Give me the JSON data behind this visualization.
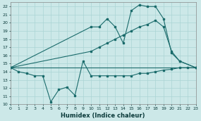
{
  "xlabel": "Humidex (Indice chaleur)",
  "xlim": [
    0,
    23
  ],
  "ylim": [
    10,
    22.5
  ],
  "xticks": [
    0,
    1,
    2,
    3,
    4,
    5,
    6,
    7,
    8,
    9,
    10,
    11,
    12,
    13,
    14,
    15,
    16,
    17,
    18,
    19,
    20,
    21,
    22,
    23
  ],
  "yticks": [
    10,
    11,
    12,
    13,
    14,
    15,
    16,
    17,
    18,
    19,
    20,
    21,
    22
  ],
  "bg_color": "#cce8e8",
  "line_color": "#1a6b6b",
  "grid_color": "#aad4d4",
  "line1_x": [
    0,
    1,
    2,
    3,
    4,
    5,
    6,
    7,
    8,
    9,
    10,
    11,
    12,
    13,
    14,
    15,
    16,
    17,
    18,
    19,
    20,
    21,
    22,
    23
  ],
  "line1_y": [
    14.5,
    14.0,
    13.8,
    13.5,
    13.5,
    10.3,
    11.8,
    12.1,
    11.1,
    15.3,
    13.5,
    13.5,
    13.5,
    13.5,
    13.5,
    13.5,
    13.8,
    13.8,
    14.0,
    14.2,
    14.3,
    14.5,
    14.5,
    14.5
  ],
  "line2_x": [
    0,
    10,
    11,
    12,
    13,
    14,
    15,
    16,
    17,
    18,
    19,
    20,
    21,
    23
  ],
  "line2_y": [
    14.5,
    19.5,
    19.5,
    20.5,
    19.5,
    17.5,
    21.5,
    22.2,
    22.0,
    22.0,
    20.5,
    16.3,
    15.3,
    14.5
  ],
  "line3_x": [
    0,
    10,
    11,
    12,
    13,
    14,
    15,
    16,
    17,
    18,
    19,
    20,
    21,
    23
  ],
  "line3_y": [
    14.5,
    16.5,
    17.0,
    17.5,
    18.0,
    18.5,
    19.0,
    19.5,
    19.8,
    20.3,
    19.5,
    16.5,
    15.3,
    14.5
  ],
  "line4_x": [
    0,
    23
  ],
  "line4_y": [
    14.5,
    14.5
  ]
}
